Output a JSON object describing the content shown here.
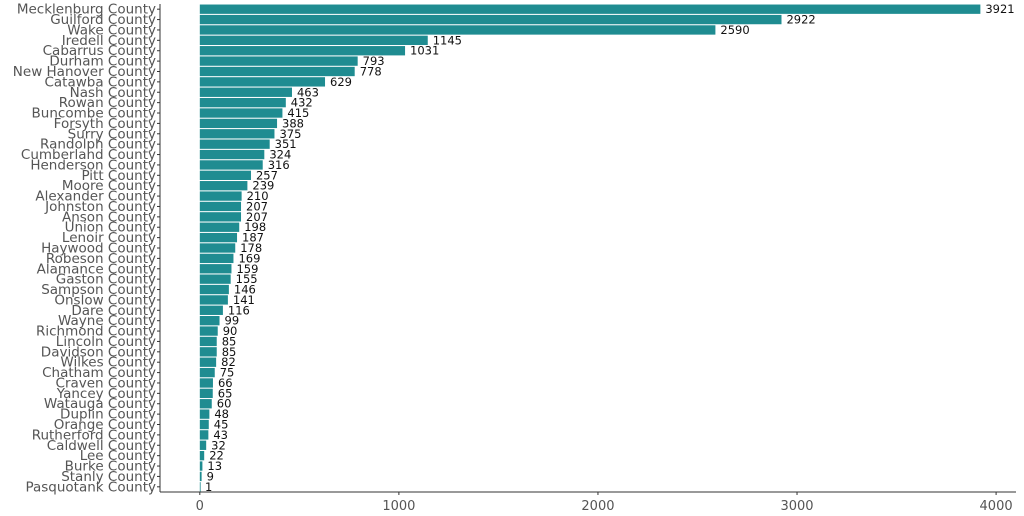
{
  "chart_data": {
    "type": "bar",
    "orientation": "horizontal",
    "bar_color": "#1f8c91",
    "categories": [
      "Mecklenburg County",
      "Guilford County",
      "Wake County",
      "Iredell County",
      "Cabarrus County",
      "Durham County",
      "New Hanover County",
      "Catawba County",
      "Nash County",
      "Rowan County",
      "Buncombe County",
      "Forsyth County",
      "Surry County",
      "Randolph County",
      "Cumberland County",
      "Henderson County",
      "Pitt County",
      "Moore County",
      "Alexander County",
      "Johnston County",
      "Anson County",
      "Union County",
      "Lenoir County",
      "Haywood County",
      "Robeson County",
      "Alamance County",
      "Gaston County",
      "Sampson County",
      "Onslow County",
      "Dare County",
      "Wayne County",
      "Richmond County",
      "Lincoln County",
      "Davidson County",
      "Wilkes County",
      "Chatham County",
      "Craven County",
      "Yancey County",
      "Watauga County",
      "Duplin County",
      "Orange County",
      "Rutherford County",
      "Caldwell County",
      "Lee County",
      "Burke County",
      "Stanly County",
      "Pasquotank County"
    ],
    "values": [
      3921,
      2922,
      2590,
      1145,
      1031,
      793,
      778,
      629,
      463,
      432,
      415,
      388,
      375,
      351,
      324,
      316,
      257,
      239,
      210,
      207,
      207,
      198,
      187,
      178,
      169,
      159,
      155,
      146,
      141,
      116,
      99,
      90,
      85,
      85,
      82,
      75,
      66,
      65,
      60,
      48,
      45,
      43,
      32,
      22,
      13,
      9,
      1
    ],
    "xlim": [
      -200,
      4100
    ],
    "x_ticks": [
      0,
      1000,
      2000,
      3000,
      4000
    ],
    "x_tick_labels": [
      "0",
      "1000",
      "2000",
      "3000",
      "4000"
    ],
    "grid": false,
    "title": "",
    "xlabel": "",
    "ylabel": ""
  }
}
